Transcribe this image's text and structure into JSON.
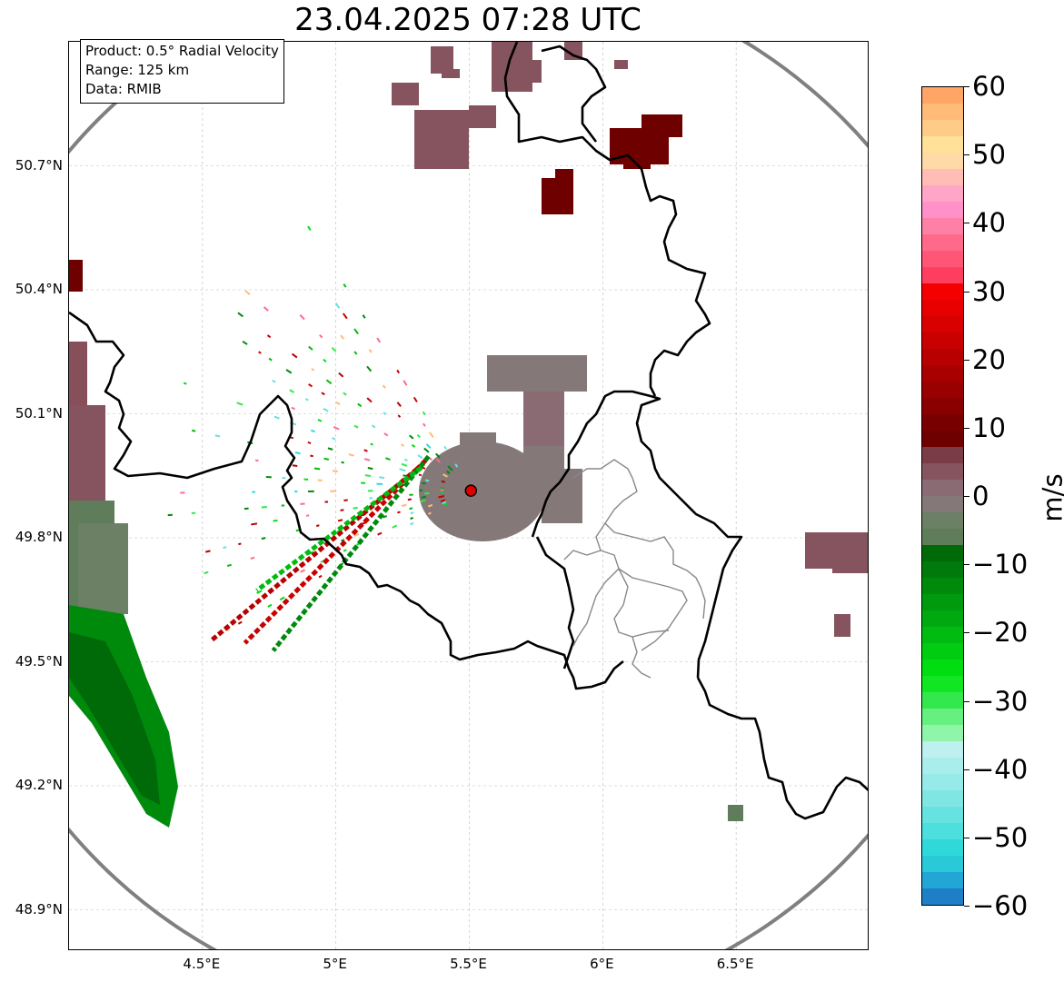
{
  "title": "23.04.2025 07:28 UTC",
  "info_box": {
    "product": "Product: 0.5° Radial Velocity",
    "range": "Range: 125 km",
    "source": "Data: RMIB"
  },
  "lat_axis": [
    {
      "label": "50.7°N",
      "value": 50.7
    },
    {
      "label": "50.4°N",
      "value": 50.4
    },
    {
      "label": "50.1°N",
      "value": 50.1
    },
    {
      "label": "49.8°N",
      "value": 49.8
    },
    {
      "label": "49.5°N",
      "value": 49.5
    },
    {
      "label": "49.2°N",
      "value": 49.2
    },
    {
      "label": "48.9°N",
      "value": 48.9
    }
  ],
  "lon_axis": [
    {
      "label": "4.5°E",
      "value": 4.5
    },
    {
      "label": "5°E",
      "value": 5.0
    },
    {
      "label": "5.5°E",
      "value": 5.5
    },
    {
      "label": "6°E",
      "value": 6.0
    },
    {
      "label": "6.5°E",
      "value": 6.5
    }
  ],
  "extent": {
    "lon_min": 4.0,
    "lon_max": 7.0,
    "lat_min": 48.8,
    "lat_max": 51.0
  },
  "radar_site": {
    "lon": 5.506,
    "lat": 49.914
  },
  "colorbar": {
    "unit": "m/s",
    "min": -60,
    "max": 60,
    "ticks": [
      {
        "label": "60",
        "value": 60
      },
      {
        "label": "50",
        "value": 50
      },
      {
        "label": "40",
        "value": 40
      },
      {
        "label": "30",
        "value": 30
      },
      {
        "label": "20",
        "value": 20
      },
      {
        "label": "10",
        "value": 10
      },
      {
        "label": "0",
        "value": 0
      },
      {
        "label": "−10",
        "value": -10
      },
      {
        "label": "−20",
        "value": -20
      },
      {
        "label": "−30",
        "value": -30
      },
      {
        "label": "−40",
        "value": -40
      },
      {
        "label": "−50",
        "value": -50
      },
      {
        "label": "−60",
        "value": -60
      }
    ],
    "colors": [
      "#1f7fc6",
      "#22a6d6",
      "#29c9d8",
      "#2fd9da",
      "#4ddede",
      "#66e2e0",
      "#7fe6e4",
      "#96eae8",
      "#aaeeec",
      "#bdf0ee",
      "#8ff5a8",
      "#66f080",
      "#33e84d",
      "#11e622",
      "#00dd11",
      "#00cc11",
      "#00bb10",
      "#00a90f",
      "#009a0e",
      "#008a0c",
      "#007a0a",
      "#006a08",
      "#5f7c5b",
      "#6b8064",
      "#847879",
      "#8a6b73",
      "#86545e",
      "#7a3c47",
      "#6f0000",
      "#7a0000",
      "#8a0000",
      "#990000",
      "#a80000",
      "#b80000",
      "#c80000",
      "#d80000",
      "#e80000",
      "#f50000",
      "#ff3e5f",
      "#ff5577",
      "#ff6a8a",
      "#ff80a6",
      "#ff90c8",
      "#ffa6c6",
      "#ffbdb5",
      "#ffd9a6",
      "#ffe19a",
      "#ffcc88",
      "#ffbb77",
      "#ffa566"
    ]
  }
}
